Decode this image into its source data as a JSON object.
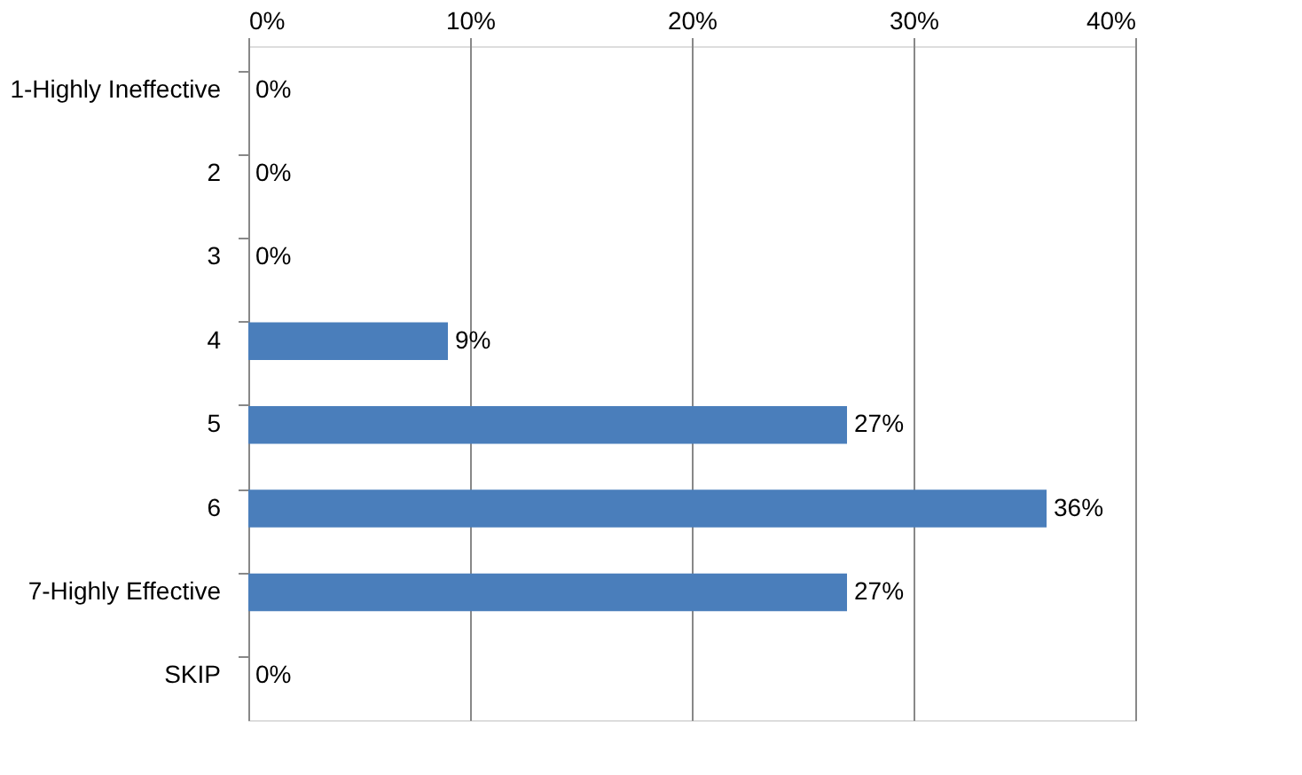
{
  "chart_data": {
    "type": "bar",
    "orientation": "horizontal",
    "categories": [
      "1-Highly Ineffective",
      "2",
      "3",
      "4",
      "5",
      "6",
      "7-Highly Effective",
      "SKIP"
    ],
    "values": [
      0,
      0,
      0,
      9,
      27,
      36,
      27,
      0
    ],
    "value_labels": [
      "0%",
      "0%",
      "0%",
      "9%",
      "27%",
      "36%",
      "27%",
      "0%"
    ],
    "color": "#4a7ebb",
    "xlim": [
      0,
      40
    ],
    "xticks": [
      {
        "value": 0,
        "label": "0%"
      },
      {
        "value": 10,
        "label": "10%"
      },
      {
        "value": 20,
        "label": "20%"
      },
      {
        "value": 30,
        "label": "30%"
      },
      {
        "value": 40,
        "label": "40%"
      }
    ],
    "grid": "x"
  }
}
